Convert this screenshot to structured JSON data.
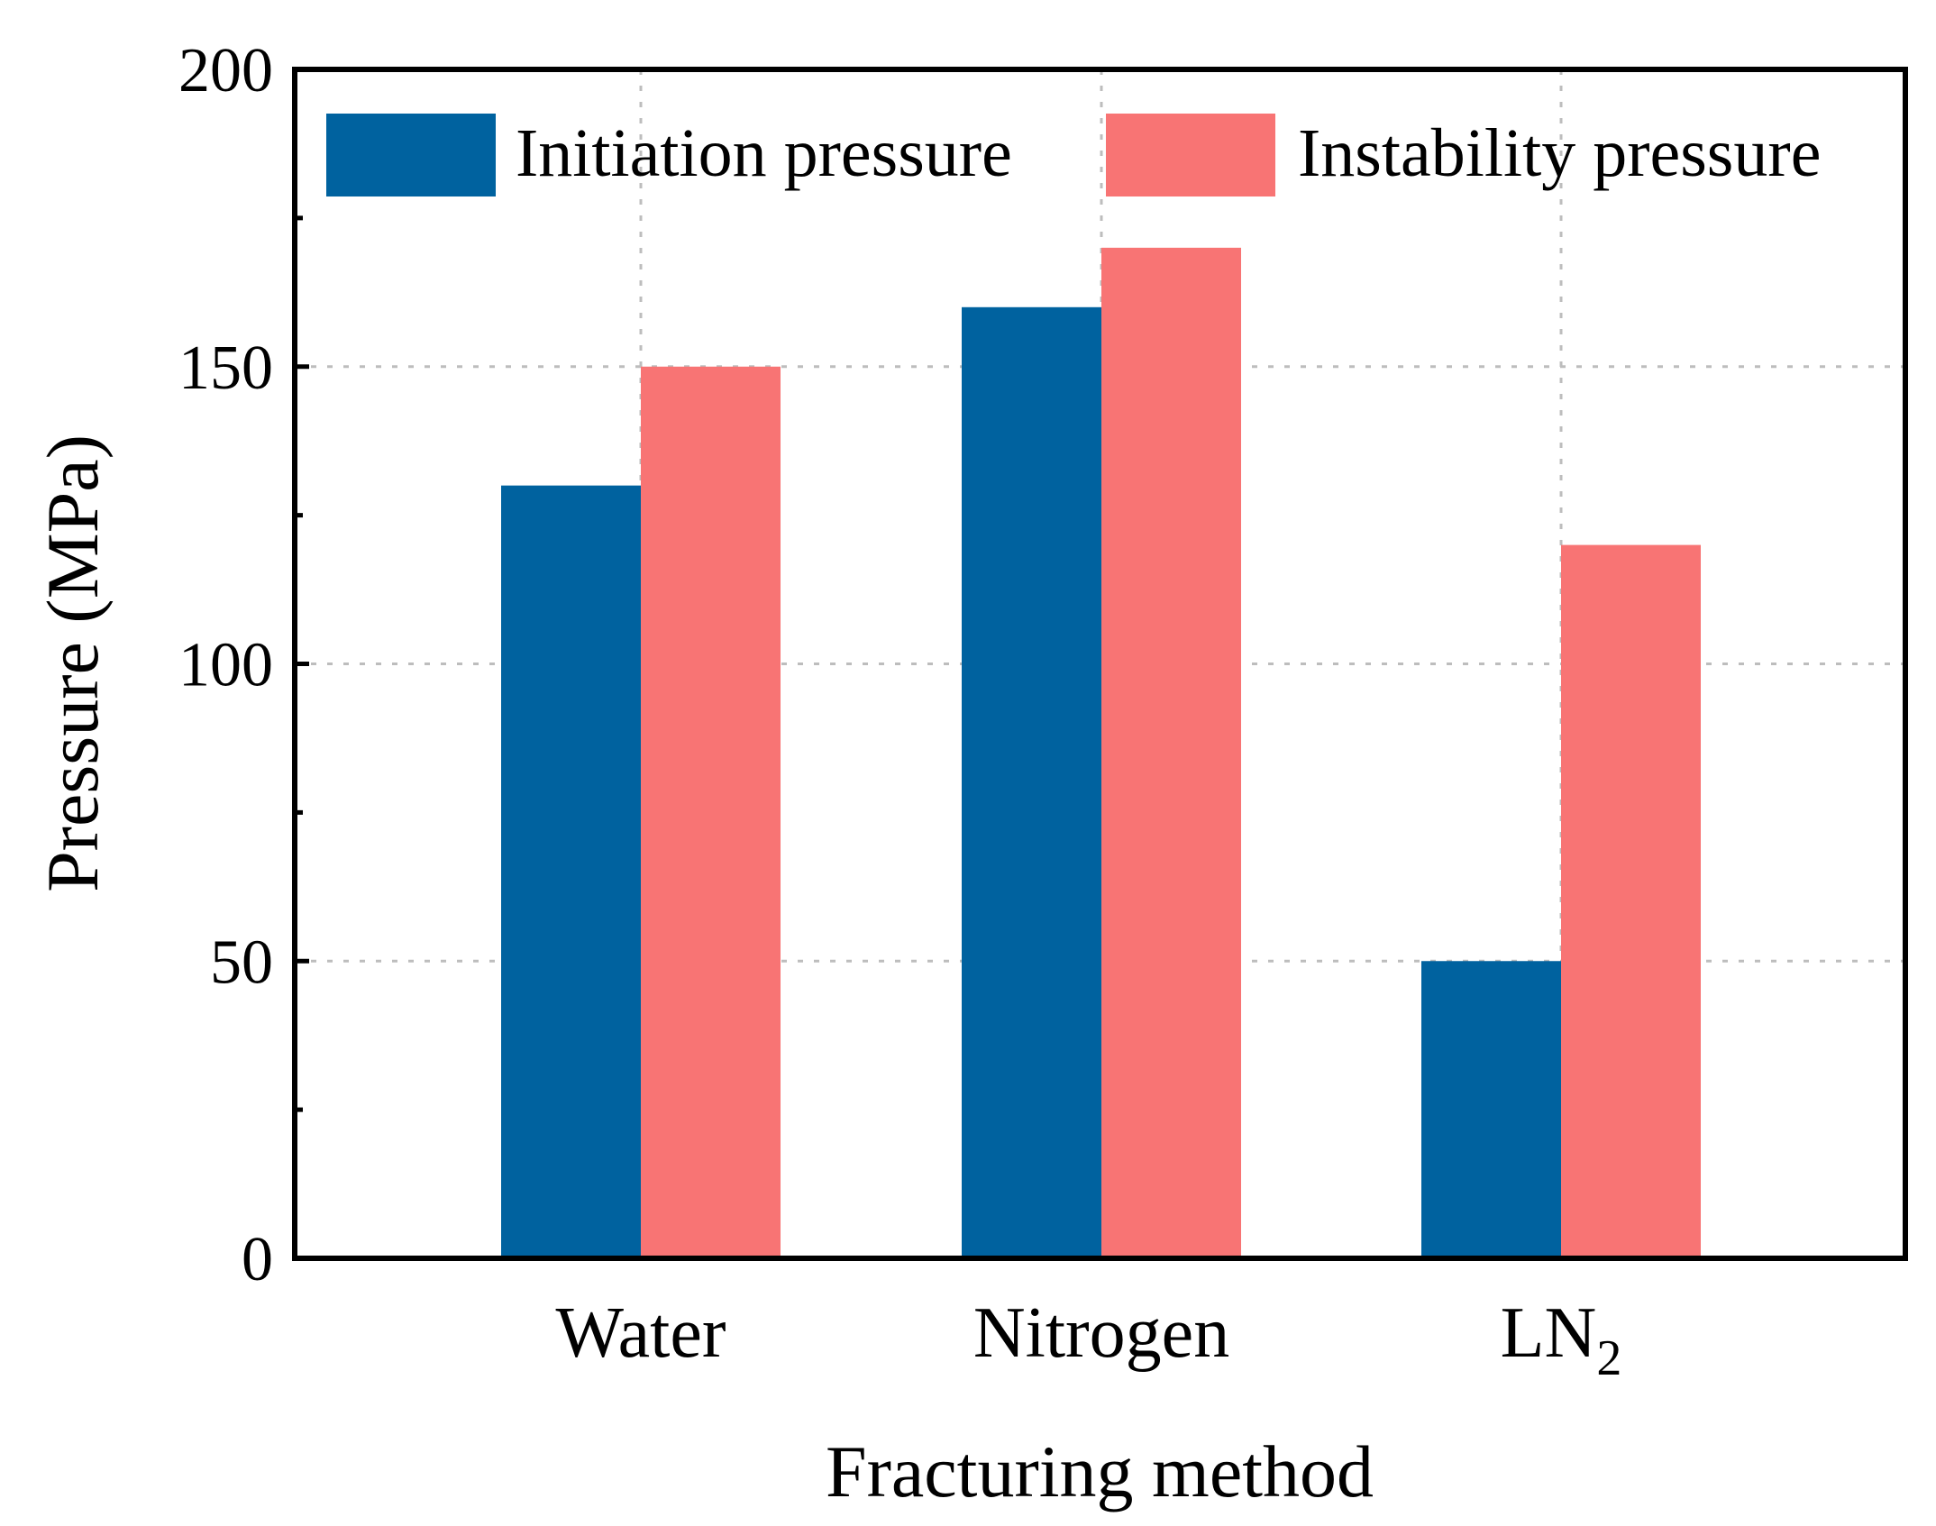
{
  "chart_data": {
    "type": "bar",
    "title": "",
    "xlabel": "Fracturing method",
    "ylabel": "Pressure (MPa)",
    "categories": [
      {
        "main": "Water",
        "sub": ""
      },
      {
        "main": "Nitrogen",
        "sub": ""
      },
      {
        "main": "LN",
        "sub": "2"
      }
    ],
    "series": [
      {
        "name": "Initiation pressure",
        "color": "#00629f",
        "values": [
          130,
          160,
          50
        ]
      },
      {
        "name": "Instability pressure",
        "color": "#f87474",
        "values": [
          150,
          170,
          120
        ]
      }
    ],
    "ylim": [
      0,
      200
    ],
    "yticks": [
      0,
      50,
      100,
      150,
      200
    ],
    "minor_ticks": [
      25,
      75,
      125,
      175
    ],
    "grid": true,
    "legend_position": "top"
  }
}
